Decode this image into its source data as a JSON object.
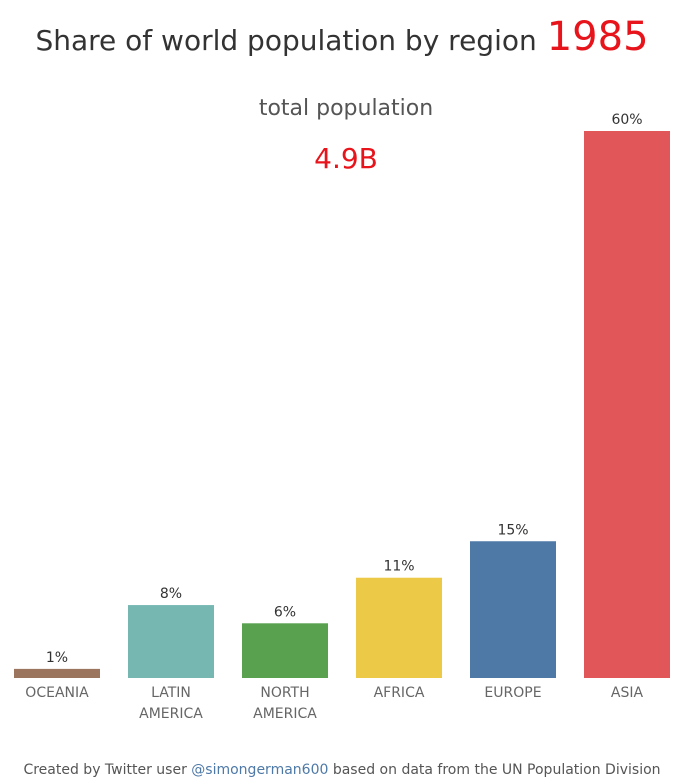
{
  "chart_data": {
    "type": "bar",
    "title": "Share of world population by region",
    "year": "1985",
    "total_label": "total population",
    "total_value": "4.9B",
    "categories": [
      "OCEANIA",
      "LATIN AMERICA",
      "NORTH AMERICA",
      "AFRICA",
      "EUROPE",
      "ASIA"
    ],
    "category_lines": [
      [
        "OCEANIA"
      ],
      [
        "LATIN",
        "AMERICA"
      ],
      [
        "NORTH",
        "AMERICA"
      ],
      [
        "AFRICA"
      ],
      [
        "EUROPE"
      ],
      [
        "ASIA"
      ]
    ],
    "values": [
      1,
      8,
      6,
      11,
      15,
      60
    ],
    "value_labels": [
      "1%",
      "8%",
      "6%",
      "11%",
      "15%",
      "60%"
    ],
    "colors": [
      "#9c755f",
      "#76b7b2",
      "#59a14f",
      "#edc948",
      "#4e79a7",
      "#e15759"
    ],
    "ylim": [
      0,
      60
    ],
    "grid": false,
    "legend": "none"
  },
  "footer": {
    "prefix": "Created by Twitter user ",
    "handle": "@simongerman600",
    "suffix": " based on data from the UN Population Division"
  }
}
